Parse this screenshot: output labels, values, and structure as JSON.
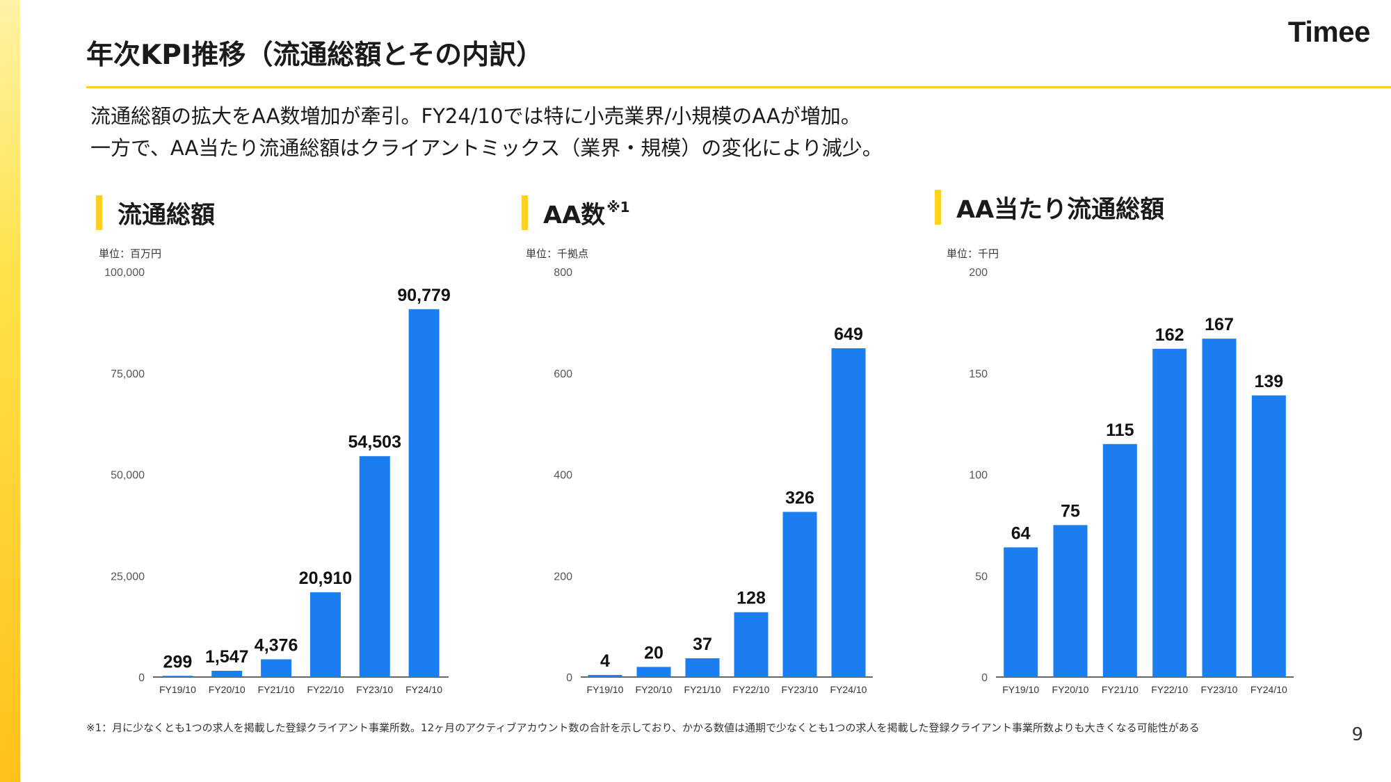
{
  "slide": {
    "title": "年次KPI推移（流通総額とその内訳）",
    "logo": "Timee",
    "summary_line1": "流通総額の拡大をAA数増加が牽引。FY24/10では特に小売業界/小規模のAAが増加。",
    "summary_line2": "一方で、AA当たり流通総額はクライアントミックス（業界・規模）の変化により減少。",
    "footnote": "※1：月に少なくとも1つの求人を掲載した登録クライアント事業所数。12ヶ月のアクティブアカウント数の合計を示しており、かかる数値は通期で少なくとも1つの求人を掲載した登録クライアント事業所数よりも大きくなる可能性がある",
    "page_number": "9"
  },
  "colors": {
    "bar": "#1a7ef0",
    "accent": "#ffd21f",
    "axis": "#333333"
  },
  "chart_data": [
    {
      "type": "bar",
      "title": "流通総額",
      "title_sup": "",
      "unit_label": "単位：百万円",
      "categories": [
        "FY19/10",
        "FY20/10",
        "FY21/10",
        "FY22/10",
        "FY23/10",
        "FY24/10"
      ],
      "values": [
        299,
        1547,
        4376,
        20910,
        54503,
        90779
      ],
      "value_labels": [
        "299",
        "1,547",
        "4,376",
        "20,910",
        "54,503",
        "90,779"
      ],
      "yticks": [
        "0",
        "25,000",
        "50,000",
        "75,000",
        "100,000"
      ],
      "ylim": [
        0,
        100000
      ],
      "xlabel": "",
      "ylabel": ""
    },
    {
      "type": "bar",
      "title": "AA数",
      "title_sup": "※1",
      "unit_label": "単位：千拠点",
      "categories": [
        "FY19/10",
        "FY20/10",
        "FY21/10",
        "FY22/10",
        "FY23/10",
        "FY24/10"
      ],
      "values": [
        4,
        20,
        37,
        128,
        326,
        649
      ],
      "value_labels": [
        "4",
        "20",
        "37",
        "128",
        "326",
        "649"
      ],
      "yticks": [
        "0",
        "200",
        "400",
        "600",
        "800"
      ],
      "ylim": [
        0,
        800
      ],
      "xlabel": "",
      "ylabel": ""
    },
    {
      "type": "bar",
      "title": "AA当たり流通総額",
      "title_sup": "",
      "unit_label": "単位：千円",
      "categories": [
        "FY19/10",
        "FY20/10",
        "FY21/10",
        "FY22/10",
        "FY23/10",
        "FY24/10"
      ],
      "values": [
        64,
        75,
        115,
        162,
        167,
        139
      ],
      "value_labels": [
        "64",
        "75",
        "115",
        "162",
        "167",
        "139"
      ],
      "yticks": [
        "0",
        "50",
        "100",
        "150",
        "200"
      ],
      "ylim": [
        0,
        200
      ],
      "xlabel": "",
      "ylabel": ""
    }
  ]
}
